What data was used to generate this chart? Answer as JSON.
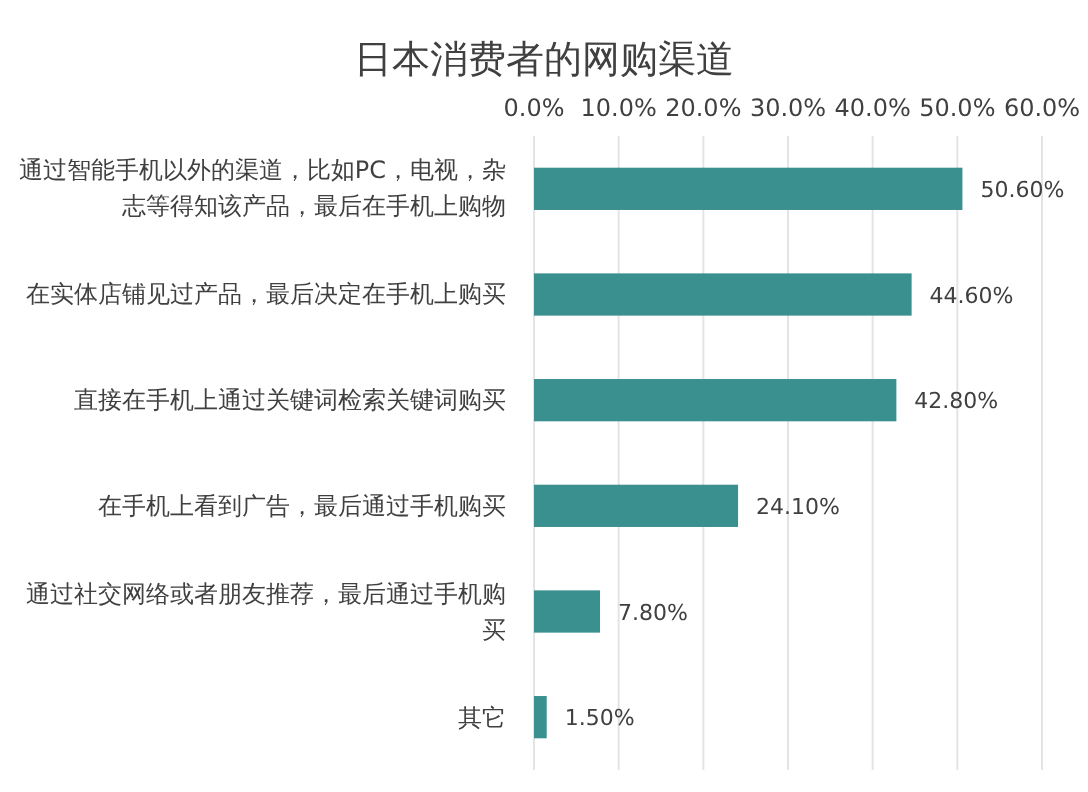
{
  "chart_data": {
    "type": "bar",
    "orientation": "horizontal",
    "title": "日本消费者的网购渠道",
    "categories": [
      "通过智能手机以外的渠道，比如PC，电视，杂志等得知该产品，最后在手机上购物",
      "在实体店铺见过产品，最后决定在手机上购买",
      "直接在手机上通过关键词检索关键词购买",
      "在手机上看到广告，最后通过手机购买",
      "通过社交网络或者朋友推荐，最后通过手机购买",
      "其它"
    ],
    "values": [
      50.6,
      44.6,
      42.8,
      24.1,
      7.8,
      1.5
    ],
    "value_labels": [
      "50.60%",
      "44.60%",
      "42.80%",
      "24.10%",
      "7.80%",
      "1.50%"
    ],
    "color": "#3a8f8f",
    "xlim": [
      0,
      60
    ],
    "xticks": [
      {
        "value": 0,
        "label": "0.0%"
      },
      {
        "value": 10,
        "label": "10.0%"
      },
      {
        "value": 20,
        "label": "20.0%"
      },
      {
        "value": 30,
        "label": "30.0%"
      },
      {
        "value": 40,
        "label": "40.0%"
      },
      {
        "value": 50,
        "label": "50.0%"
      },
      {
        "value": 60,
        "label": "60.0%"
      }
    ],
    "grid": "x"
  }
}
